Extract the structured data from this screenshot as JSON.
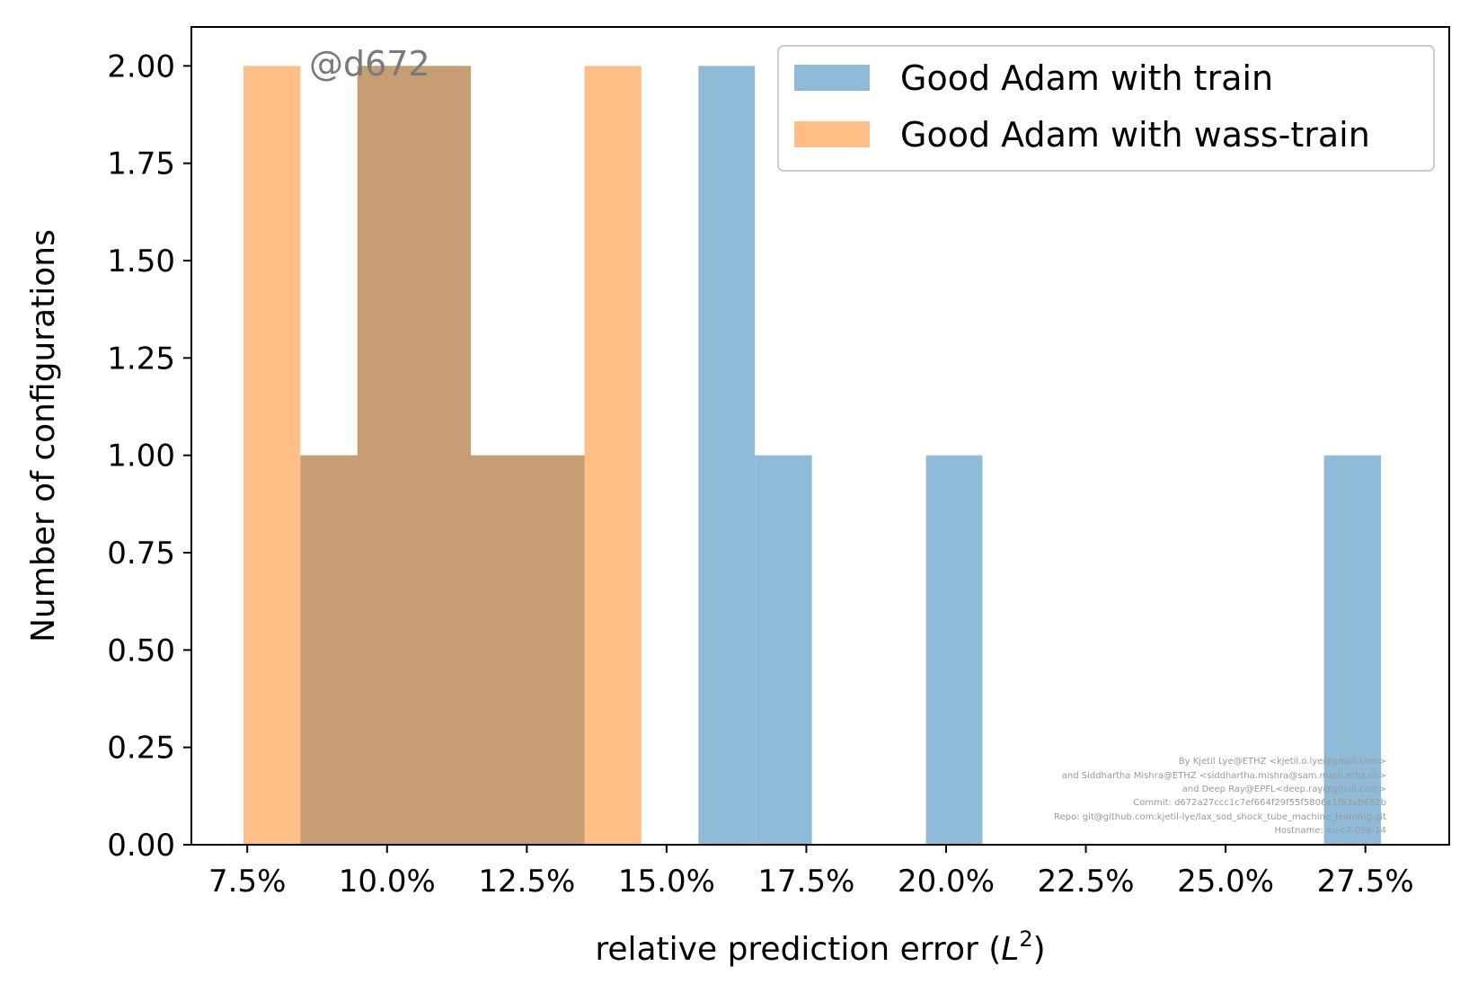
{
  "chart_data": {
    "type": "bar",
    "xlabel": "relative prediction error (",
    "xlabel_math": "L",
    "xlabel_sup": "2",
    "xlabel_end": ")",
    "ylabel": "Number of configurations",
    "xlim": [
      6.5,
      29.0
    ],
    "ylim": [
      0,
      2.1
    ],
    "x_ticks": [
      7.5,
      10.0,
      12.5,
      15.0,
      17.5,
      20.0,
      22.5,
      25.0,
      27.5
    ],
    "x_tick_labels": [
      "7.5%",
      "10.0%",
      "12.5%",
      "15.0%",
      "17.5%",
      "20.0%",
      "22.5%",
      "25.0%",
      "27.5%"
    ],
    "y_ticks": [
      0.0,
      0.25,
      0.5,
      0.75,
      1.0,
      1.25,
      1.5,
      1.75,
      2.0
    ],
    "y_tick_labels": [
      "0.00",
      "0.25",
      "0.50",
      "0.75",
      "1.00",
      "1.25",
      "1.50",
      "1.75",
      "2.00"
    ],
    "grid": false,
    "legend_position": "top-right",
    "series": [
      {
        "name": "Good Adam with train",
        "color": "#1f77b4",
        "opacity": 0.5,
        "bins": [
          {
            "x0": 8.45,
            "x1": 9.47,
            "count": 1
          },
          {
            "x0": 9.47,
            "x1": 10.48,
            "count": 2
          },
          {
            "x0": 10.48,
            "x1": 11.5,
            "count": 2
          },
          {
            "x0": 11.5,
            "x1": 12.52,
            "count": 1
          },
          {
            "x0": 12.52,
            "x1": 13.53,
            "count": 1
          },
          {
            "x0": 15.57,
            "x1": 16.58,
            "count": 2
          },
          {
            "x0": 16.58,
            "x1": 17.6,
            "count": 1
          },
          {
            "x0": 19.64,
            "x1": 20.65,
            "count": 1
          },
          {
            "x0": 26.76,
            "x1": 27.78,
            "count": 1
          }
        ]
      },
      {
        "name": "Good Adam with wass-train",
        "color": "#ff7f0e",
        "opacity": 0.5,
        "bins": [
          {
            "x0": 7.43,
            "x1": 8.45,
            "count": 2
          },
          {
            "x0": 8.45,
            "x1": 9.47,
            "count": 1
          },
          {
            "x0": 9.47,
            "x1": 10.48,
            "count": 2
          },
          {
            "x0": 10.48,
            "x1": 11.5,
            "count": 2
          },
          {
            "x0": 11.5,
            "x1": 12.52,
            "count": 1
          },
          {
            "x0": 12.52,
            "x1": 13.53,
            "count": 1
          },
          {
            "x0": 13.53,
            "x1": 14.55,
            "count": 2
          }
        ]
      }
    ],
    "annotations": {
      "stamp": "@d672",
      "credits": [
        "By Kjetil Lye@ETHZ <kjetil.o.lye@gmail.com>",
        "and Siddhartha Mishra@ETHZ <siddhartha.mishra@sam.math.ethz.ch>",
        "and Deep Ray@EPFL<deep.ray@gmail.com>",
        "Commit: d672a27ccc1c7ef664f29f55f5806e1f93ab652b",
        "Repo: git@github.com:kjetil-lye/lax_sod_shock_tube_machine_learning.git",
        "Hostname: eu-c7-056-14"
      ]
    }
  }
}
